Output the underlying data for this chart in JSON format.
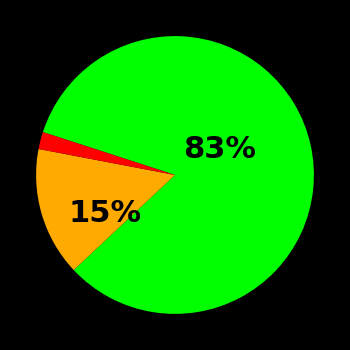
{
  "slices": [
    83,
    15,
    2
  ],
  "colors": [
    "#00ff00",
    "#ffaa00",
    "#ff0000"
  ],
  "background_color": "#000000",
  "startangle": 162,
  "font_size": 22,
  "font_weight": "bold"
}
